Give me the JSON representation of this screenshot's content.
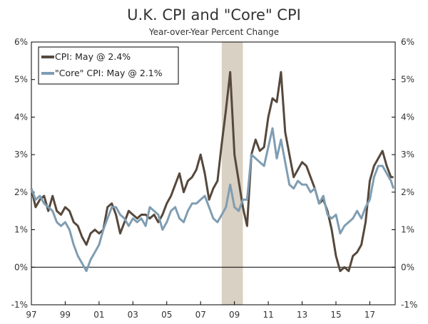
{
  "chart_data": {
    "type": "line",
    "title": "U.K. CPI and \"Core\" CPI",
    "subtitle": "Year-over-Year Percent Change",
    "xlabel": "",
    "ylabel": "",
    "x_ticks": [
      "97",
      "99",
      "01",
      "03",
      "05",
      "07",
      "09",
      "11",
      "13",
      "15",
      "17"
    ],
    "x_tick_values": [
      1997,
      1999,
      2001,
      2003,
      2005,
      2007,
      2009,
      2011,
      2013,
      2015,
      2017
    ],
    "xlim": [
      1997,
      2018.5
    ],
    "y_ticks": [
      "-1%",
      "0%",
      "1%",
      "2%",
      "3%",
      "4%",
      "5%",
      "6%"
    ],
    "y_tick_values": [
      -1,
      0,
      1,
      2,
      3,
      4,
      5,
      6
    ],
    "ylim": [
      -1,
      6
    ],
    "legend_placement": "top-left",
    "recession_shading": [
      2008.25,
      2009.5
    ],
    "colors": {
      "cpi": "#56483c",
      "core": "#7f9db2",
      "shading": "#d9d1c3",
      "axis": "#000000"
    },
    "series": [
      {
        "name": "CPI: May @ 2.4%",
        "key": "cpi",
        "points": [
          [
            1997.0,
            2.1
          ],
          [
            1997.25,
            1.6
          ],
          [
            1997.5,
            1.8
          ],
          [
            1997.75,
            1.9
          ],
          [
            1998.0,
            1.5
          ],
          [
            1998.25,
            1.9
          ],
          [
            1998.5,
            1.5
          ],
          [
            1998.75,
            1.4
          ],
          [
            1999.0,
            1.6
          ],
          [
            1999.25,
            1.5
          ],
          [
            1999.5,
            1.2
          ],
          [
            1999.75,
            1.1
          ],
          [
            2000.0,
            0.8
          ],
          [
            2000.25,
            0.6
          ],
          [
            2000.5,
            0.9
          ],
          [
            2000.75,
            1.0
          ],
          [
            2001.0,
            0.9
          ],
          [
            2001.25,
            1.0
          ],
          [
            2001.5,
            1.6
          ],
          [
            2001.75,
            1.7
          ],
          [
            2002.0,
            1.4
          ],
          [
            2002.25,
            0.9
          ],
          [
            2002.5,
            1.2
          ],
          [
            2002.75,
            1.5
          ],
          [
            2003.0,
            1.4
          ],
          [
            2003.25,
            1.3
          ],
          [
            2003.5,
            1.4
          ],
          [
            2003.75,
            1.4
          ],
          [
            2004.0,
            1.3
          ],
          [
            2004.25,
            1.4
          ],
          [
            2004.5,
            1.2
          ],
          [
            2004.75,
            1.4
          ],
          [
            2005.0,
            1.7
          ],
          [
            2005.25,
            1.9
          ],
          [
            2005.5,
            2.2
          ],
          [
            2005.75,
            2.5
          ],
          [
            2006.0,
            2.0
          ],
          [
            2006.25,
            2.3
          ],
          [
            2006.5,
            2.4
          ],
          [
            2006.75,
            2.6
          ],
          [
            2007.0,
            3.0
          ],
          [
            2007.25,
            2.5
          ],
          [
            2007.5,
            1.8
          ],
          [
            2007.75,
            2.1
          ],
          [
            2008.0,
            2.3
          ],
          [
            2008.25,
            3.3
          ],
          [
            2008.5,
            4.2
          ],
          [
            2008.75,
            5.2
          ],
          [
            2009.0,
            3.0
          ],
          [
            2009.25,
            2.3
          ],
          [
            2009.5,
            1.6
          ],
          [
            2009.75,
            1.1
          ],
          [
            2010.0,
            3.0
          ],
          [
            2010.25,
            3.4
          ],
          [
            2010.5,
            3.1
          ],
          [
            2010.75,
            3.2
          ],
          [
            2011.0,
            4.0
          ],
          [
            2011.25,
            4.5
          ],
          [
            2011.5,
            4.4
          ],
          [
            2011.75,
            5.2
          ],
          [
            2012.0,
            3.6
          ],
          [
            2012.25,
            3.0
          ],
          [
            2012.5,
            2.4
          ],
          [
            2012.75,
            2.6
          ],
          [
            2013.0,
            2.8
          ],
          [
            2013.25,
            2.7
          ],
          [
            2013.5,
            2.4
          ],
          [
            2013.75,
            2.1
          ],
          [
            2014.0,
            1.7
          ],
          [
            2014.25,
            1.8
          ],
          [
            2014.5,
            1.5
          ],
          [
            2014.75,
            1.0
          ],
          [
            2015.0,
            0.3
          ],
          [
            2015.25,
            -0.1
          ],
          [
            2015.5,
            0.0
          ],
          [
            2015.75,
            -0.1
          ],
          [
            2016.0,
            0.3
          ],
          [
            2016.25,
            0.4
          ],
          [
            2016.5,
            0.6
          ],
          [
            2016.75,
            1.2
          ],
          [
            2017.0,
            2.3
          ],
          [
            2017.25,
            2.7
          ],
          [
            2017.5,
            2.9
          ],
          [
            2017.75,
            3.1
          ],
          [
            2018.0,
            2.7
          ],
          [
            2018.25,
            2.4
          ],
          [
            2018.4,
            2.4
          ]
        ]
      },
      {
        "name": "\"Core\" CPI: May @ 2.1%",
        "key": "core",
        "points": [
          [
            1997.0,
            2.1
          ],
          [
            1997.25,
            1.8
          ],
          [
            1997.5,
            1.9
          ],
          [
            1997.75,
            1.7
          ],
          [
            1998.0,
            1.6
          ],
          [
            1998.25,
            1.5
          ],
          [
            1998.5,
            1.2
          ],
          [
            1998.75,
            1.1
          ],
          [
            1999.0,
            1.2
          ],
          [
            1999.25,
            1.0
          ],
          [
            1999.5,
            0.6
          ],
          [
            1999.75,
            0.3
          ],
          [
            2000.0,
            0.1
          ],
          [
            2000.25,
            -0.1
          ],
          [
            2000.5,
            0.2
          ],
          [
            2000.75,
            0.4
          ],
          [
            2001.0,
            0.6
          ],
          [
            2001.25,
            1.0
          ],
          [
            2001.5,
            1.3
          ],
          [
            2001.75,
            1.6
          ],
          [
            2002.0,
            1.6
          ],
          [
            2002.25,
            1.4
          ],
          [
            2002.5,
            1.3
          ],
          [
            2002.75,
            1.1
          ],
          [
            2003.0,
            1.3
          ],
          [
            2003.25,
            1.2
          ],
          [
            2003.5,
            1.3
          ],
          [
            2003.75,
            1.1
          ],
          [
            2004.0,
            1.6
          ],
          [
            2004.25,
            1.5
          ],
          [
            2004.5,
            1.4
          ],
          [
            2004.75,
            1.0
          ],
          [
            2005.0,
            1.2
          ],
          [
            2005.25,
            1.5
          ],
          [
            2005.5,
            1.6
          ],
          [
            2005.75,
            1.3
          ],
          [
            2006.0,
            1.2
          ],
          [
            2006.25,
            1.5
          ],
          [
            2006.5,
            1.7
          ],
          [
            2006.75,
            1.7
          ],
          [
            2007.0,
            1.8
          ],
          [
            2007.25,
            1.9
          ],
          [
            2007.5,
            1.6
          ],
          [
            2007.75,
            1.3
          ],
          [
            2008.0,
            1.2
          ],
          [
            2008.25,
            1.4
          ],
          [
            2008.5,
            1.6
          ],
          [
            2008.75,
            2.2
          ],
          [
            2009.0,
            1.6
          ],
          [
            2009.25,
            1.5
          ],
          [
            2009.5,
            1.8
          ],
          [
            2009.75,
            1.8
          ],
          [
            2010.0,
            3.0
          ],
          [
            2010.25,
            2.9
          ],
          [
            2010.5,
            2.8
          ],
          [
            2010.75,
            2.7
          ],
          [
            2011.0,
            3.2
          ],
          [
            2011.25,
            3.7
          ],
          [
            2011.5,
            2.9
          ],
          [
            2011.75,
            3.4
          ],
          [
            2012.0,
            2.8
          ],
          [
            2012.25,
            2.2
          ],
          [
            2012.5,
            2.1
          ],
          [
            2012.75,
            2.3
          ],
          [
            2013.0,
            2.2
          ],
          [
            2013.25,
            2.2
          ],
          [
            2013.5,
            2.0
          ],
          [
            2013.75,
            2.1
          ],
          [
            2014.0,
            1.7
          ],
          [
            2014.25,
            1.9
          ],
          [
            2014.5,
            1.4
          ],
          [
            2014.75,
            1.3
          ],
          [
            2015.0,
            1.4
          ],
          [
            2015.25,
            0.9
          ],
          [
            2015.5,
            1.1
          ],
          [
            2015.75,
            1.2
          ],
          [
            2016.0,
            1.3
          ],
          [
            2016.25,
            1.5
          ],
          [
            2016.5,
            1.3
          ],
          [
            2016.75,
            1.6
          ],
          [
            2017.0,
            1.8
          ],
          [
            2017.25,
            2.4
          ],
          [
            2017.5,
            2.7
          ],
          [
            2017.75,
            2.7
          ],
          [
            2018.0,
            2.5
          ],
          [
            2018.25,
            2.3
          ],
          [
            2018.4,
            2.1
          ]
        ]
      }
    ]
  }
}
